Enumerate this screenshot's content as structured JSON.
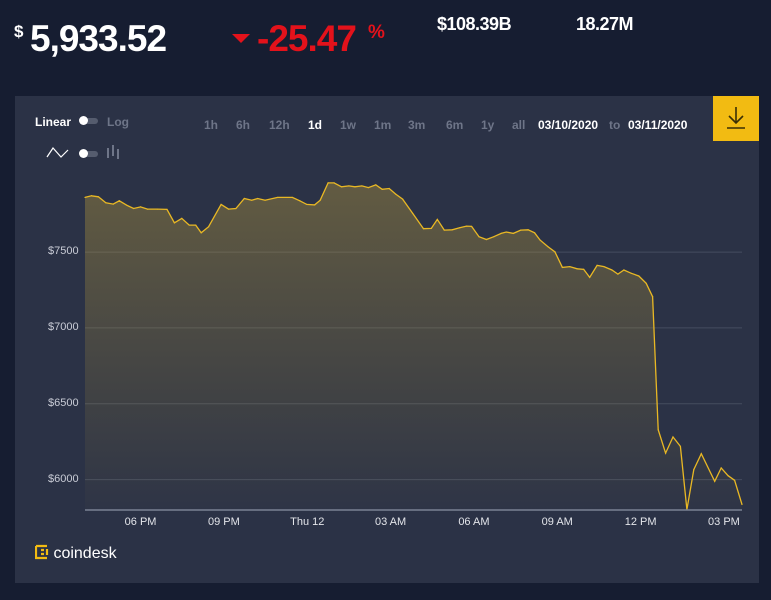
{
  "header": {
    "currency_symbol": "$",
    "price": "5,933.52",
    "change": "-25.47",
    "change_unit": "%",
    "change_direction": "down",
    "market_cap": "$108.39B",
    "volume": "18.27M"
  },
  "controls": {
    "scale_linear": "Linear",
    "scale_log": "Log",
    "ranges": [
      "1h",
      "6h",
      "12h",
      "1d",
      "1w",
      "1m",
      "3m",
      "6m",
      "1y",
      "all"
    ],
    "active_range": "1d",
    "date_from": "03/10/2020",
    "date_to_label": "to",
    "date_to": "03/11/2020",
    "chart_style_icons": [
      "line-chart-icon",
      "candlestick-icon"
    ],
    "download_icon": "download-icon"
  },
  "brand": {
    "name": "coindesk"
  },
  "colors": {
    "background": "#161d31",
    "panel": "#2b3246",
    "line": "#e9b824",
    "negative": "#e3121b",
    "download": "#f2bb12"
  },
  "chart_data": {
    "type": "area",
    "ylim": [
      5800,
      7975
    ],
    "grid": true,
    "y_ticks": [
      7500,
      7000,
      6500,
      6000
    ],
    "y_tick_labels": [
      "$7500",
      "$7000",
      "$6500",
      "$6000"
    ],
    "x_ticks": [
      "2020-03-11T18:00",
      "2020-03-11T21:00",
      "2020-03-12T00:00",
      "2020-03-12T03:00",
      "2020-03-12T06:00",
      "2020-03-12T09:00",
      "2020-03-12T12:00",
      "2020-03-12T15:00"
    ],
    "x_tick_labels": [
      "06 PM",
      "09 PM",
      "Thu 12",
      "03 AM",
      "06 AM",
      "09 AM",
      "12 PM",
      "03 PM"
    ],
    "xlim": [
      "2020-03-11T16:00",
      "2020-03-12T15:39"
    ],
    "x": [
      "2020-03-11T16:00",
      "2020-03-11T16:14",
      "2020-03-11T16:29",
      "2020-03-11T16:45",
      "2020-03-11T17:01",
      "2020-03-11T17:14",
      "2020-03-11T17:30",
      "2020-03-11T17:45",
      "2020-03-11T18:00",
      "2020-03-11T18:15",
      "2020-03-11T18:36",
      "2020-03-11T18:57",
      "2020-03-11T19:13",
      "2020-03-11T19:29",
      "2020-03-11T19:45",
      "2020-03-11T19:59",
      "2020-03-11T20:11",
      "2020-03-11T20:27",
      "2020-03-11T20:54",
      "2020-03-11T21:10",
      "2020-03-11T21:26",
      "2020-03-11T21:44",
      "2020-03-11T22:00",
      "2020-03-11T22:13",
      "2020-03-11T22:29",
      "2020-03-11T22:56",
      "2020-03-11T23:28",
      "2020-03-11T23:44",
      "2020-03-11T23:59",
      "2020-03-12T00:16",
      "2020-03-12T00:28",
      "2020-03-12T00:45",
      "2020-03-12T00:58",
      "2020-03-12T01:14",
      "2020-03-12T01:30",
      "2020-03-12T01:43",
      "2020-03-12T01:58",
      "2020-03-12T02:12",
      "2020-03-12T02:28",
      "2020-03-12T02:42",
      "2020-03-12T02:57",
      "2020-03-12T03:11",
      "2020-03-12T03:26",
      "2020-03-12T03:48",
      "2020-03-12T04:11",
      "2020-03-12T04:28",
      "2020-03-12T04:41",
      "2020-03-12T04:56",
      "2020-03-12T05:13",
      "2020-03-12T05:29",
      "2020-03-12T05:44",
      "2020-03-12T05:55",
      "2020-03-12T06:11",
      "2020-03-12T06:27",
      "2020-03-12T06:43",
      "2020-03-12T06:59",
      "2020-03-12T07:10",
      "2020-03-12T07:25",
      "2020-03-12T07:41",
      "2020-03-12T07:57",
      "2020-03-12T08:11",
      "2020-03-12T08:23",
      "2020-03-12T08:40",
      "2020-03-12T08:55",
      "2020-03-12T09:11",
      "2020-03-12T09:27",
      "2020-03-12T09:43",
      "2020-03-12T09:57",
      "2020-03-12T10:10",
      "2020-03-12T10:26",
      "2020-03-12T10:41",
      "2020-03-12T10:58",
      "2020-03-12T11:11",
      "2020-03-12T11:24",
      "2020-03-12T11:40",
      "2020-03-12T11:56",
      "2020-03-12T12:12",
      "2020-03-12T12:26",
      "2020-03-12T12:38",
      "2020-03-12T12:54",
      "2020-03-12T13:10",
      "2020-03-12T13:26",
      "2020-03-12T13:40",
      "2020-03-12T13:55",
      "2020-03-12T14:11",
      "2020-03-12T14:40",
      "2020-03-12T14:54",
      "2020-03-12T15:09",
      "2020-03-12T15:23",
      "2020-03-12T15:39"
    ],
    "y": [
      7860,
      7871,
      7864,
      7825,
      7816,
      7838,
      7809,
      7787,
      7798,
      7783,
      7783,
      7781,
      7693,
      7722,
      7678,
      7678,
      7627,
      7667,
      7814,
      7783,
      7787,
      7853,
      7842,
      7853,
      7842,
      7860,
      7860,
      7838,
      7814,
      7811,
      7842,
      7956,
      7956,
      7930,
      7936,
      7930,
      7936,
      7925,
      7943,
      7914,
      7919,
      7882,
      7849,
      7754,
      7654,
      7656,
      7715,
      7645,
      7647,
      7660,
      7671,
      7669,
      7601,
      7583,
      7601,
      7623,
      7632,
      7623,
      7645,
      7647,
      7627,
      7579,
      7535,
      7502,
      7399,
      7404,
      7390,
      7386,
      7333,
      7412,
      7404,
      7382,
      7355,
      7382,
      7360,
      7342,
      7294,
      7206,
      6329,
      6175,
      6281,
      6219,
      5803,
      6066,
      6171,
      5989,
      6077,
      6026,
      5996,
      5836
    ]
  }
}
